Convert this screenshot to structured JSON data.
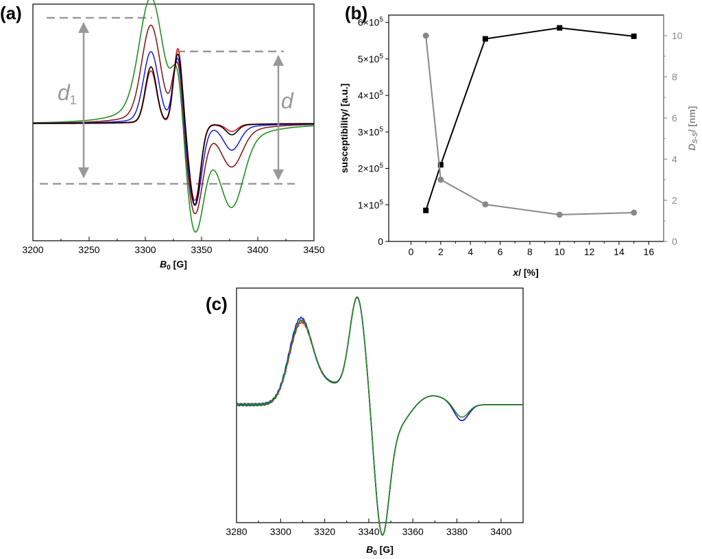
{
  "chart_data": [
    {
      "panel": "(a)",
      "type": "line",
      "xlabel_main": "B",
      "xlabel_sub": "0",
      "xlabel_unit": " [G]",
      "xlim": [
        3200,
        3450
      ],
      "xticks": [
        3200,
        3250,
        3300,
        3350,
        3400,
        3450
      ],
      "ylabel": "",
      "annotations": {
        "d1_main": "d",
        "d1_sub": "1",
        "d": "d"
      },
      "series": [
        {
          "name": "green",
          "color": "#1f8f1f",
          "peak": 3305,
          "trough": 3345,
          "amp": 1.0,
          "width": 9
        },
        {
          "name": "darkred",
          "color": "#8b1a1a",
          "peak": 3305,
          "trough": 3344,
          "amp": 0.82,
          "width": 7
        },
        {
          "name": "blue",
          "color": "#2222dd",
          "peak": 3304,
          "trough": 3343,
          "amp": 0.66,
          "width": 6
        },
        {
          "name": "red",
          "color": "#dd2222",
          "peak": 3305,
          "trough": 3342,
          "amp": 0.52,
          "width": 4.5
        },
        {
          "name": "black",
          "color": "#000000",
          "peak": 3305,
          "trough": 3342,
          "amp": 0.55,
          "width": 5
        }
      ]
    },
    {
      "panel": "(b)",
      "type": "line",
      "xlabel_main": "x",
      "xlabel_unit": "/ [%]",
      "xlim": [
        -1.5,
        17
      ],
      "xticks": [
        0,
        2,
        4,
        6,
        8,
        10,
        12,
        14,
        16
      ],
      "ylabel": "susceptibility/ [a.u.]",
      "ylim": [
        0,
        620000
      ],
      "yticks_left": [
        {
          "value": 0,
          "mant": "0",
          "exp": ""
        },
        {
          "value": 100000,
          "mant": "1×10",
          "exp": "5"
        },
        {
          "value": 200000,
          "mant": "2×10",
          "exp": "5"
        },
        {
          "value": 300000,
          "mant": "3×10",
          "exp": "5"
        },
        {
          "value": 400000,
          "mant": "4×10",
          "exp": "5"
        },
        {
          "value": 500000,
          "mant": "5×10",
          "exp": "5"
        },
        {
          "value": 600000,
          "mant": "6×10",
          "exp": "5"
        }
      ],
      "ylabel_right_main": "D",
      "ylabel_right_sub": "S-S",
      "ylabel_right_unit": "/ [nm]",
      "ylim_right": [
        0,
        11
      ],
      "yticks_right": [
        0,
        2,
        4,
        6,
        8,
        10
      ],
      "series": [
        {
          "name": "susceptibility",
          "axis": "left",
          "color": "#000000",
          "marker": "square",
          "x": [
            1,
            2,
            5,
            10,
            15
          ],
          "y": [
            85000,
            210000,
            555000,
            585000,
            562000
          ]
        },
        {
          "name": "D S-S",
          "axis": "right",
          "color": "#888888",
          "marker": "circle",
          "x": [
            1,
            2,
            5,
            10,
            15
          ],
          "y": [
            10,
            3.0,
            1.8,
            1.3,
            1.4
          ]
        }
      ]
    },
    {
      "panel": "(c)",
      "type": "line",
      "xlabel_main": "B",
      "xlabel_sub": "0",
      "xlabel_unit": " [G]",
      "xlim": [
        3280,
        3410
      ],
      "xticks": [
        3280,
        3300,
        3320,
        3340,
        3360,
        3380,
        3400
      ],
      "ylabel": "",
      "series": [
        {
          "name": "black",
          "color": "#000000",
          "shift": 0.0
        },
        {
          "name": "red",
          "color": "#dd2222",
          "shift": 0.4
        },
        {
          "name": "blue",
          "color": "#2222dd",
          "shift": -0.3
        },
        {
          "name": "green",
          "color": "#1f8f1f",
          "shift": 0.2
        }
      ]
    }
  ]
}
